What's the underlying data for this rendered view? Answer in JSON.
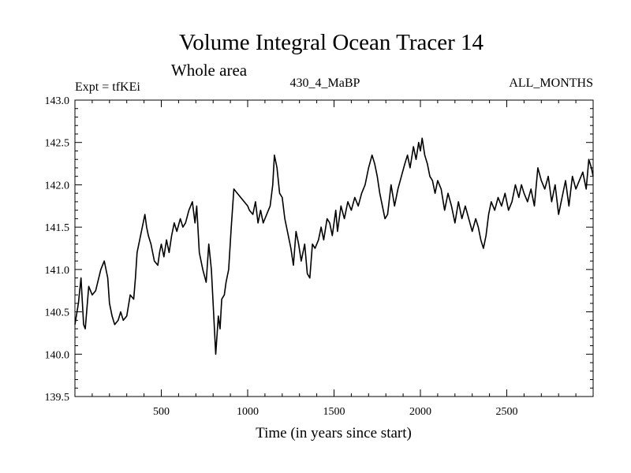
{
  "chart_data": {
    "type": "line",
    "title": "Volume Integral Ocean Tracer 14",
    "subtitle": "Whole area",
    "annotations": {
      "left": "Expt = tfKEi",
      "center": "430_4_MaBP",
      "right": "ALL_MONTHS"
    },
    "xlabel": "Time (in years since start)",
    "ylabel": "",
    "xlim": [
      0,
      3000
    ],
    "ylim": [
      139.5,
      143.0
    ],
    "x_ticks": [
      500,
      1000,
      1500,
      2000,
      2500
    ],
    "y_ticks": [
      139.5,
      140.0,
      140.5,
      141.0,
      141.5,
      142.0,
      142.5,
      143.0
    ],
    "grid": false,
    "series": [
      {
        "color": "#000000",
        "x": [
          0,
          20,
          35,
          50,
          60,
          80,
          100,
          120,
          150,
          170,
          190,
          200,
          215,
          230,
          250,
          265,
          280,
          300,
          320,
          340,
          350,
          360,
          375,
          385,
          395,
          405,
          415,
          425,
          440,
          460,
          480,
          490,
          500,
          515,
          530,
          545,
          560,
          575,
          590,
          610,
          625,
          640,
          660,
          680,
          695,
          705,
          720,
          740,
          760,
          775,
          790,
          800,
          815,
          830,
          840,
          850,
          865,
          875,
          890,
          905,
          920,
          940,
          960,
          980,
          1000,
          1010,
          1030,
          1045,
          1060,
          1075,
          1090,
          1110,
          1130,
          1145,
          1155,
          1170,
          1185,
          1200,
          1215,
          1230,
          1250,
          1265,
          1280,
          1295,
          1310,
          1330,
          1345,
          1360,
          1375,
          1390,
          1410,
          1425,
          1440,
          1460,
          1475,
          1490,
          1510,
          1520,
          1540,
          1560,
          1580,
          1600,
          1620,
          1640,
          1660,
          1680,
          1700,
          1720,
          1735,
          1750,
          1765,
          1780,
          1795,
          1810,
          1830,
          1850,
          1870,
          1890,
          1910,
          1925,
          1940,
          1960,
          1975,
          1990,
          2000,
          2010,
          2025,
          2040,
          2055,
          2070,
          2085,
          2100,
          2120,
          2140,
          2160,
          2180,
          2200,
          2220,
          2240,
          2260,
          2280,
          2300,
          2320,
          2335,
          2350,
          2365,
          2380,
          2395,
          2410,
          2430,
          2450,
          2470,
          2490,
          2510,
          2530,
          2550,
          2570,
          2585,
          2600,
          2620,
          2640,
          2660,
          2680,
          2700,
          2720,
          2740,
          2760,
          2780,
          2800,
          2820,
          2840,
          2860,
          2880,
          2900,
          2920,
          2940,
          2960,
          2975,
          2990,
          3000
        ],
        "y": [
          140.35,
          140.6,
          140.9,
          140.35,
          140.3,
          140.8,
          140.7,
          140.75,
          141.0,
          141.1,
          140.9,
          140.6,
          140.45,
          140.35,
          140.4,
          140.5,
          140.4,
          140.45,
          140.7,
          140.65,
          140.9,
          141.2,
          141.35,
          141.45,
          141.55,
          141.65,
          141.5,
          141.4,
          141.3,
          141.1,
          141.05,
          141.2,
          141.3,
          141.15,
          141.35,
          141.2,
          141.4,
          141.55,
          141.45,
          141.6,
          141.5,
          141.55,
          141.7,
          141.8,
          141.55,
          141.75,
          141.2,
          141.0,
          140.85,
          141.3,
          141.0,
          140.6,
          140.0,
          140.45,
          140.3,
          140.65,
          140.7,
          140.85,
          141.0,
          141.5,
          141.95,
          141.9,
          141.85,
          141.8,
          141.75,
          141.7,
          141.65,
          141.8,
          141.55,
          141.7,
          141.55,
          141.65,
          141.75,
          142.0,
          142.35,
          142.2,
          141.9,
          141.85,
          141.6,
          141.45,
          141.25,
          141.05,
          141.45,
          141.3,
          141.1,
          141.3,
          140.95,
          140.9,
          141.3,
          141.25,
          141.35,
          141.5,
          141.35,
          141.6,
          141.55,
          141.4,
          141.7,
          141.45,
          141.75,
          141.6,
          141.8,
          141.7,
          141.85,
          141.75,
          141.9,
          142.0,
          142.2,
          142.35,
          142.25,
          142.1,
          141.9,
          141.75,
          141.6,
          141.65,
          142.0,
          141.75,
          141.95,
          142.1,
          142.25,
          142.35,
          142.2,
          142.45,
          142.3,
          142.5,
          142.4,
          142.55,
          142.35,
          142.25,
          142.1,
          142.05,
          141.9,
          142.05,
          141.95,
          141.7,
          141.9,
          141.75,
          141.55,
          141.8,
          141.6,
          141.75,
          141.6,
          141.45,
          141.6,
          141.5,
          141.35,
          141.25,
          141.4,
          141.65,
          141.8,
          141.7,
          141.85,
          141.75,
          141.9,
          141.7,
          141.8,
          142.0,
          141.85,
          142.0,
          141.9,
          141.8,
          141.95,
          141.75,
          142.2,
          142.05,
          141.95,
          142.1,
          141.8,
          142.0,
          141.65,
          141.85,
          142.05,
          141.75,
          142.1,
          141.95,
          142.05,
          142.15,
          141.95,
          142.3,
          142.2,
          142.1
        ]
      }
    ]
  }
}
